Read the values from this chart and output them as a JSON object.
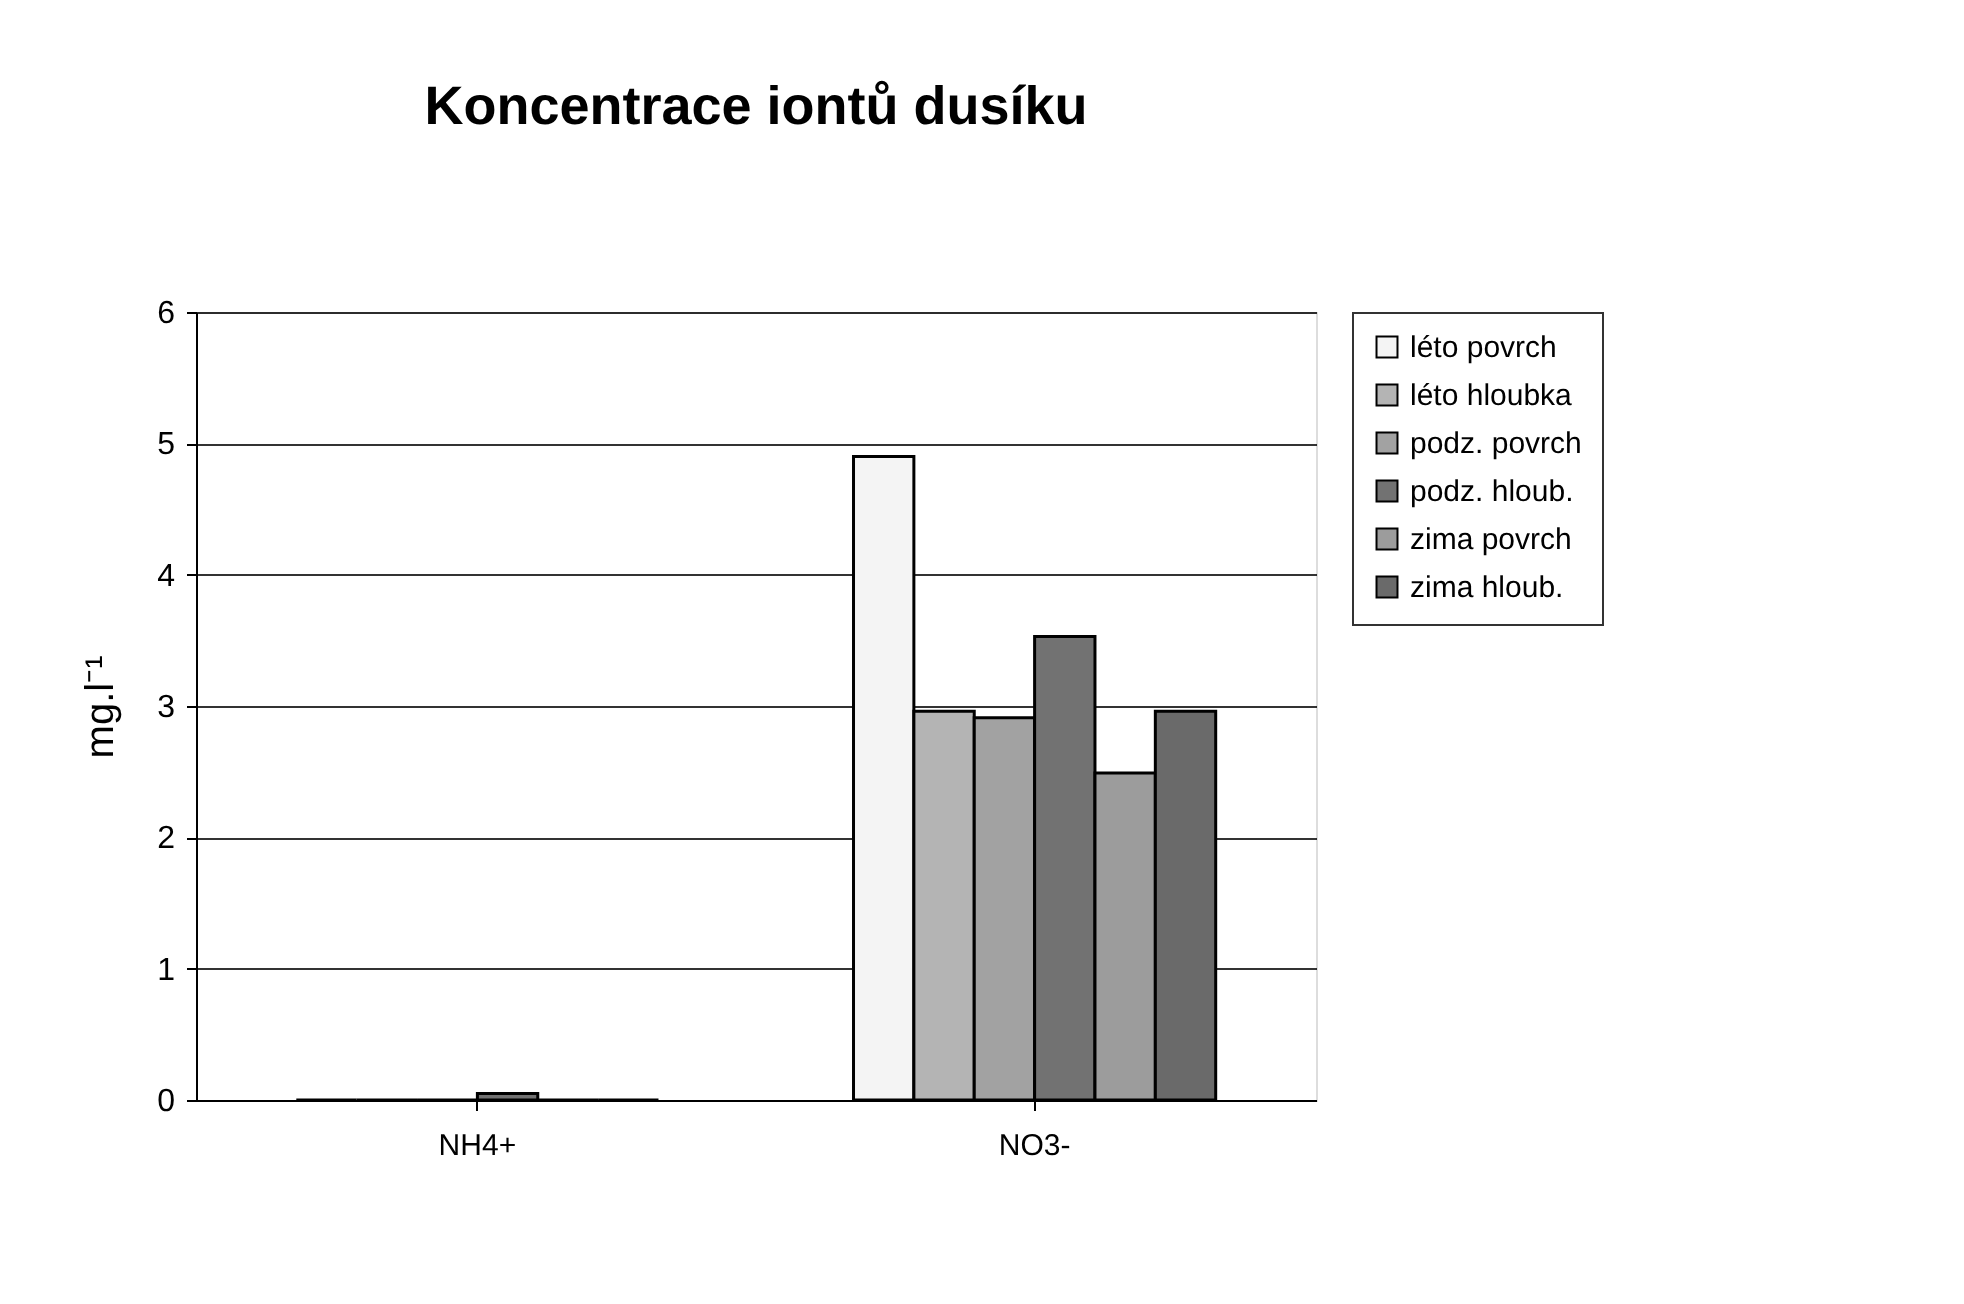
{
  "chart_data": {
    "type": "bar",
    "title": "Koncentrace iontů dusíku",
    "ylabel": "mg.l⁻¹",
    "categories": [
      "NH4+",
      "NO3-"
    ],
    "series": [
      {
        "name": "léto povrch",
        "color": "#f4f4f4",
        "values": [
          0,
          4.9
        ]
      },
      {
        "name": "léto hloubka",
        "color": "#b4b4b4",
        "values": [
          0,
          2.96
        ]
      },
      {
        "name": "podz. povrch",
        "color": "#a2a2a2",
        "values": [
          0,
          2.91
        ]
      },
      {
        "name": "podz. hloub.",
        "color": "#727272",
        "values": [
          0.05,
          3.53
        ]
      },
      {
        "name": "zima povrch",
        "color": "#9c9c9c",
        "values": [
          0,
          2.49
        ]
      },
      {
        "name": "zima hloub.",
        "color": "#6a6a6a",
        "values": [
          0,
          2.96
        ]
      }
    ],
    "ylim": [
      0,
      6
    ],
    "yticks": [
      0,
      1,
      2,
      3,
      4,
      5,
      6
    ],
    "grid": "y",
    "legend": "right"
  }
}
